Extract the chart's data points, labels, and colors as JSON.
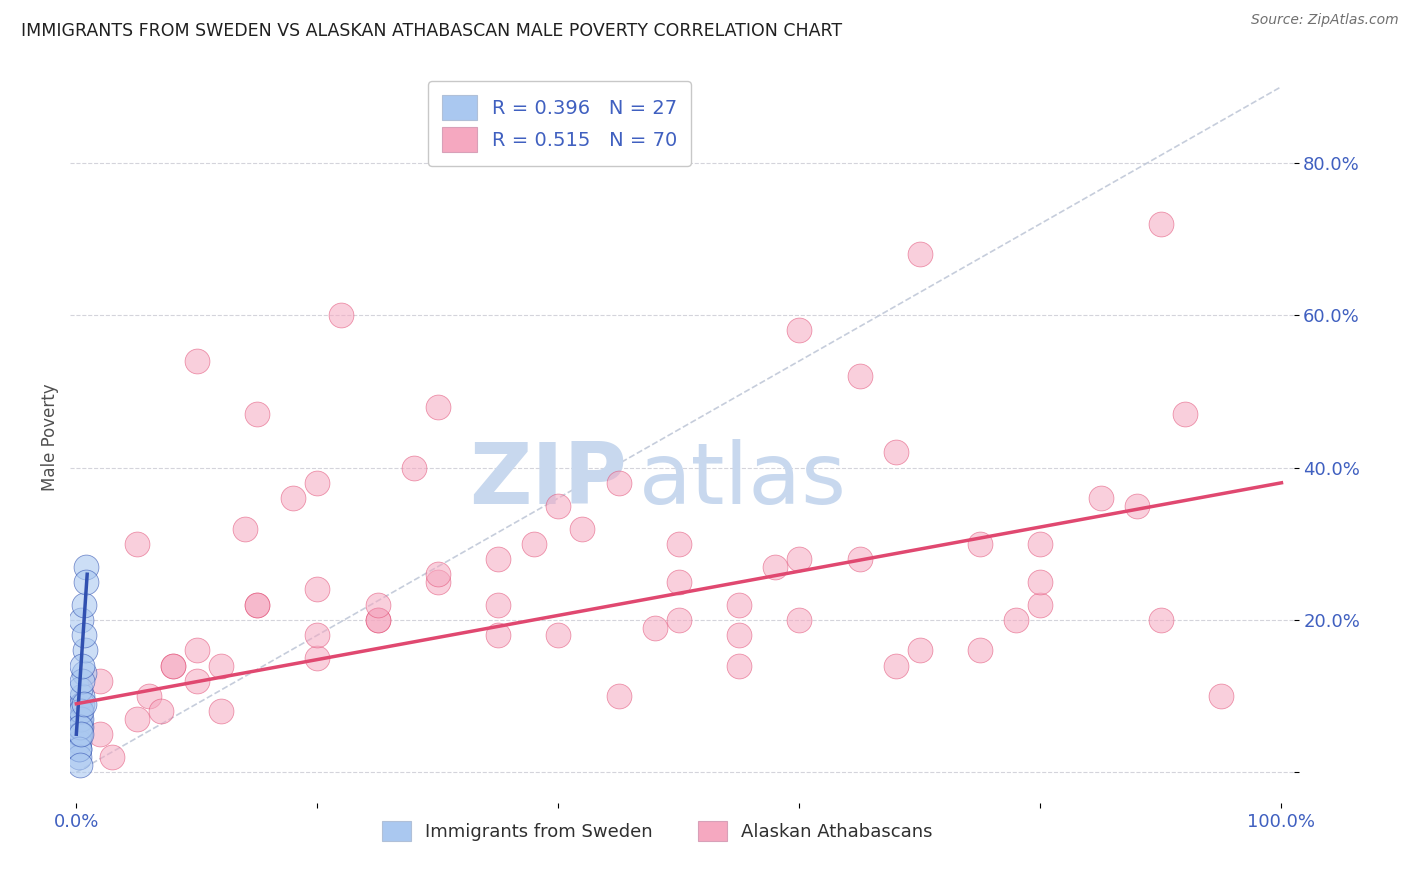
{
  "title": "IMMIGRANTS FROM SWEDEN VS ALASKAN ATHABASCAN MALE POVERTY CORRELATION CHART",
  "source": "Source: ZipAtlas.com",
  "ylabel": "Male Poverty",
  "legend_r1": "R = 0.396",
  "legend_n1": "N = 27",
  "legend_r2": "R = 0.515",
  "legend_n2": "N = 70",
  "color_sweden": "#aac8f0",
  "color_athabascan": "#f5a8c0",
  "trendline_sweden": "#3050b0",
  "trendline_athabascan": "#e04870",
  "refline_color": "#c0c8d8",
  "background_color": "#ffffff",
  "watermark_zip_color": "#c8d8ee",
  "watermark_atlas_color": "#c8d8ee",
  "ytick_color": "#4060c0",
  "xtick_color": "#4060c0",
  "sweden_x": [
    0.003,
    0.005,
    0.002,
    0.008,
    0.004,
    0.006,
    0.003,
    0.007,
    0.002,
    0.005,
    0.004,
    0.003,
    0.006,
    0.002,
    0.004,
    0.005,
    0.003,
    0.006,
    0.002,
    0.004,
    0.008,
    0.003,
    0.005,
    0.002,
    0.006,
    0.004,
    0.003
  ],
  "sweden_y": [
    0.07,
    0.1,
    0.05,
    0.27,
    0.2,
    0.13,
    0.08,
    0.16,
    0.04,
    0.09,
    0.06,
    0.11,
    0.18,
    0.03,
    0.07,
    0.12,
    0.05,
    0.22,
    0.02,
    0.08,
    0.25,
    0.06,
    0.14,
    0.03,
    0.09,
    0.05,
    0.01
  ],
  "athabascan_x": [
    0.003,
    0.02,
    0.05,
    0.08,
    0.12,
    0.15,
    0.2,
    0.25,
    0.3,
    0.35,
    0.4,
    0.45,
    0.5,
    0.55,
    0.6,
    0.65,
    0.7,
    0.75,
    0.8,
    0.85,
    0.9,
    0.95,
    0.1,
    0.15,
    0.22,
    0.28,
    0.38,
    0.48,
    0.58,
    0.68,
    0.78,
    0.88,
    0.05,
    0.1,
    0.15,
    0.2,
    0.25,
    0.3,
    0.08,
    0.14,
    0.2,
    0.35,
    0.45,
    0.55,
    0.65,
    0.75,
    0.02,
    0.06,
    0.1,
    0.18,
    0.25,
    0.35,
    0.5,
    0.6,
    0.7,
    0.8,
    0.9,
    0.4,
    0.5,
    0.6,
    0.03,
    0.07,
    0.12,
    0.2,
    0.3,
    0.42,
    0.55,
    0.68,
    0.8,
    0.92
  ],
  "athabascan_y": [
    0.08,
    0.12,
    0.3,
    0.14,
    0.08,
    0.22,
    0.24,
    0.2,
    0.25,
    0.28,
    0.18,
    0.1,
    0.2,
    0.14,
    0.28,
    0.52,
    0.16,
    0.16,
    0.3,
    0.36,
    0.2,
    0.1,
    0.54,
    0.47,
    0.6,
    0.4,
    0.3,
    0.19,
    0.27,
    0.14,
    0.2,
    0.35,
    0.07,
    0.12,
    0.22,
    0.38,
    0.2,
    0.48,
    0.14,
    0.32,
    0.15,
    0.18,
    0.38,
    0.18,
    0.28,
    0.3,
    0.05,
    0.1,
    0.16,
    0.36,
    0.22,
    0.22,
    0.25,
    0.58,
    0.68,
    0.22,
    0.72,
    0.35,
    0.3,
    0.2,
    0.02,
    0.08,
    0.14,
    0.18,
    0.26,
    0.32,
    0.22,
    0.42,
    0.25,
    0.47
  ],
  "sweden_trend_x": [
    0.0,
    0.009
  ],
  "sweden_trend_y": [
    0.05,
    0.26
  ],
  "athabascan_trend_x": [
    0.0,
    1.0
  ],
  "athabascan_trend_y": [
    0.09,
    0.38
  ],
  "refline_x": [
    0.0,
    1.0
  ],
  "refline_y": [
    0.0,
    0.9
  ],
  "xlim": [
    -0.005,
    1.01
  ],
  "ylim": [
    -0.04,
    0.92
  ]
}
